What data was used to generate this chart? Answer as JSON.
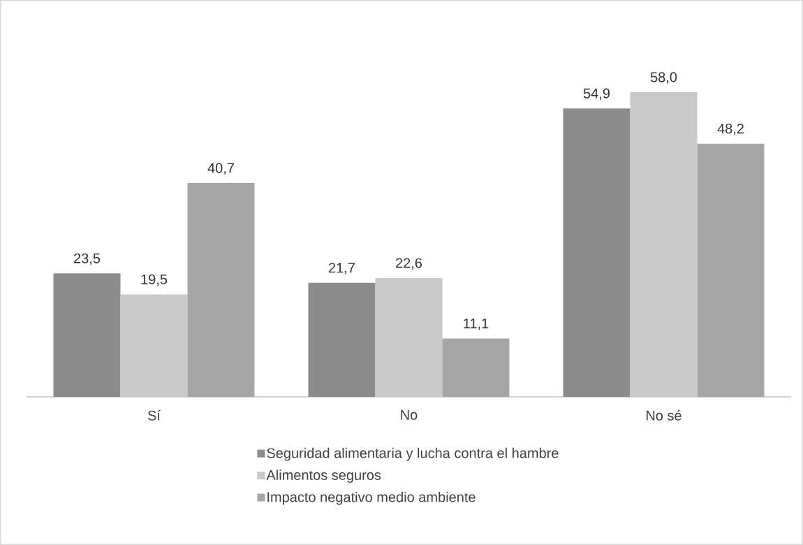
{
  "chart_data": {
    "type": "bar",
    "categories": [
      "Sí",
      "No",
      "No sé"
    ],
    "series": [
      {
        "name": "Seguridad alimentaria y lucha contra el hambre",
        "color": "#8c8c8c",
        "values": [
          23.5,
          21.7,
          54.9
        ],
        "value_labels": [
          "23,5",
          "21,7",
          "54,9"
        ]
      },
      {
        "name": "Alimentos seguros",
        "color": "#c9c9c9",
        "values": [
          19.5,
          22.6,
          58.0
        ],
        "value_labels": [
          "19,5",
          "22,6",
          "58,0"
        ]
      },
      {
        "name": "Impacto negativo medio ambiente",
        "color": "#a6a6a6",
        "values": [
          40.7,
          11.1,
          48.2
        ],
        "value_labels": [
          "40,7",
          "11,1",
          "48,2"
        ]
      }
    ],
    "legend": "bottom"
  }
}
